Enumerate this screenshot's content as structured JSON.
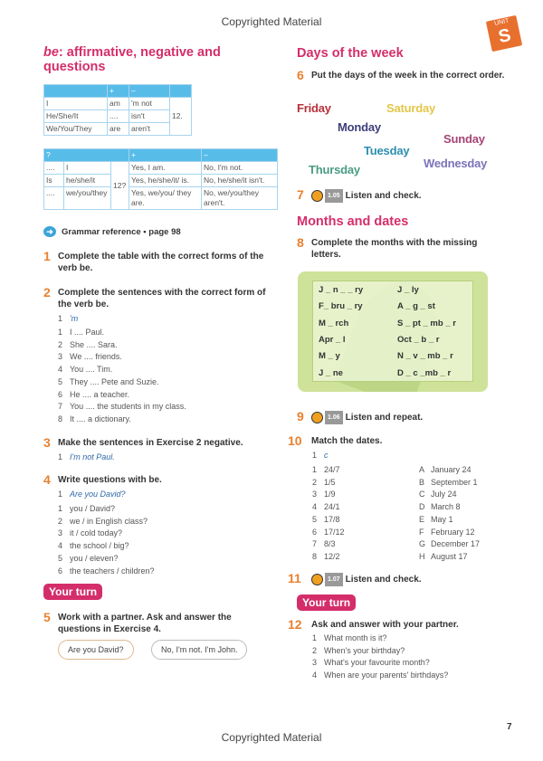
{
  "header": {
    "copyright": "Copyrighted Material",
    "unit_label": "UNIT",
    "unit_letter": "S"
  },
  "footer": {
    "copyright": "Copyrighted Material",
    "page_number": "7"
  },
  "left": {
    "title_italic": "be",
    "title_rest": ": affirmative, negative and questions",
    "table1": {
      "headers": [
        "",
        "+",
        "–",
        ""
      ],
      "rows": [
        [
          "I",
          "am",
          "'m not"
        ],
        [
          "He/She/It",
          "....",
          "isn't"
        ],
        [
          "We/You/They",
          "are",
          "aren't"
        ]
      ],
      "merged": "12."
    },
    "table2": {
      "headers": [
        "?",
        "+",
        "–"
      ],
      "rows": [
        [
          "....",
          "I",
          "Yes, I am.",
          "No, I'm not."
        ],
        [
          "Is",
          "he/she/it",
          "Yes, he/she/it/ is.",
          "No, he/she/it isn't."
        ],
        [
          "....",
          "we/you/they",
          "Yes, we/you/ they are.",
          "No, we/you/they aren't."
        ]
      ],
      "merged": "12?"
    },
    "grammar_ref": "Grammar reference • page 98",
    "ex1": {
      "num": "1",
      "text": "Complete the table with the correct forms of the verb be."
    },
    "ex2": {
      "num": "2",
      "text": "Complete the sentences with the correct form of the verb be.",
      "example_num": "1",
      "example": "'m",
      "items": [
        "I .... Paul.",
        "She .... Sara.",
        "We .... friends.",
        "You .... Tim.",
        "They .... Pete and Suzie.",
        "He .... a teacher.",
        "You .... the students in my class.",
        "It .... a dictionary."
      ]
    },
    "ex3": {
      "num": "3",
      "text": "Make the sentences in Exercise 2 negative.",
      "example_num": "1",
      "example": "I'm not Paul."
    },
    "ex4": {
      "num": "4",
      "text": "Write questions with be.",
      "example_num": "1",
      "example": "Are you David?",
      "items": [
        "you / David?",
        "we / in English class?",
        "it / cold today?",
        "the school / big?",
        "you / eleven?",
        "the teachers / children?"
      ]
    },
    "your_turn": "Your turn",
    "ex5": {
      "num": "5",
      "text": "Work with a partner. Ask and answer the questions in Exercise 4.",
      "bubble1": "Are you David?",
      "bubble2": "No, I'm not. I'm John."
    }
  },
  "right": {
    "days_title": "Days of the week",
    "ex6": {
      "num": "6",
      "text": "Put the days of the week in the correct order."
    },
    "days": [
      {
        "label": "Friday",
        "color": "#b5313a"
      },
      {
        "label": "Saturday",
        "color": "#e3c64a"
      },
      {
        "label": "Monday",
        "color": "#3d3f7a"
      },
      {
        "label": "Sunday",
        "color": "#a64477"
      },
      {
        "label": "Tuesday",
        "color": "#2d8fb0"
      },
      {
        "label": "Thursday",
        "color": "#4a9b83"
      },
      {
        "label": "Wednesday",
        "color": "#7a73b8"
      }
    ],
    "ex7": {
      "num": "7",
      "track": "1.05",
      "text": "Listen and check."
    },
    "months_title": "Months and dates",
    "ex8": {
      "num": "8",
      "text": "Complete the months with the missing letters.",
      "months": [
        [
          "J _ n _ _ ry",
          "J _ ly"
        ],
        [
          "F_ bru _ ry",
          "A _ g _ st"
        ],
        [
          "M _ rch",
          "S _ pt _ mb _ r"
        ],
        [
          "Apr _ l",
          "Oct _ b _ r"
        ],
        [
          "M _ y",
          "N _ v _ mb _ r"
        ],
        [
          "J _ ne",
          "D _ c _mb _ r"
        ]
      ]
    },
    "ex9": {
      "num": "9",
      "track": "1.06",
      "text": "Listen and repeat."
    },
    "ex10": {
      "num": "10",
      "text": "Match the dates.",
      "example_num": "1",
      "example": "c",
      "left": [
        "24/7",
        "1/5",
        "1/9",
        "24/1",
        "17/8",
        "17/12",
        "8/3",
        "12/2"
      ],
      "letters": [
        "A",
        "B",
        "C",
        "D",
        "E",
        "F",
        "G",
        "H"
      ],
      "right": [
        "January 24",
        "September 1",
        "July 24",
        "March 8",
        "May 1",
        "February 12",
        "December 17",
        "August 17"
      ]
    },
    "ex11": {
      "num": "11",
      "track": "1.07",
      "text": "Listen and check."
    },
    "your_turn": "Your turn",
    "ex12": {
      "num": "12",
      "text": "Ask and answer with your partner.",
      "items": [
        "What month is it?",
        "When's your birthday?",
        "What's your favourite month?",
        "When are your parents' birthdays?"
      ]
    }
  },
  "colors": {
    "heading": "#d42e6a",
    "exercise_number": "#e8812f",
    "table_header": "#58bce8",
    "unit_badge": "#e8702f",
    "example": "#2f69a8"
  }
}
